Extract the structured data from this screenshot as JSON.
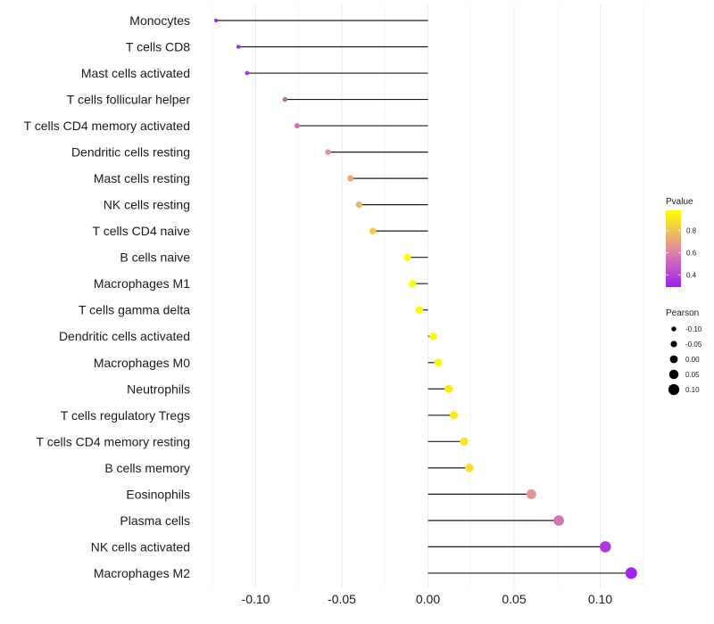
{
  "chart_data": {
    "type": "lollipop",
    "title": "",
    "xlabel": "",
    "ylabel": "",
    "xlim": [
      -0.128,
      0.122
    ],
    "x_ticks": [
      -0.1,
      -0.05,
      0.0,
      0.05,
      0.1
    ],
    "x_tick_labels": [
      "-0.10",
      "-0.05",
      "0.00",
      "0.05",
      "0.10"
    ],
    "grid": true,
    "categories": [
      "Monocytes",
      "T cells CD8",
      "Mast cells activated",
      "T cells follicular helper",
      "T cells CD4 memory activated",
      "Dendritic cells resting",
      "Mast cells resting",
      "NK cells resting",
      "T cells CD4 naive",
      "B cells naive",
      "Macrophages M1",
      "T cells gamma delta",
      "Dendritic cells activated",
      "Macrophages M0",
      "Neutrophils",
      "T cells regulatory  Tregs ",
      "T cells CD4 memory resting",
      "B cells memory",
      "Eosinophils",
      "Plasma cells",
      "NK cells activated",
      "Macrophages M2"
    ],
    "pearson": [
      -0.123,
      -0.11,
      -0.105,
      -0.083,
      -0.076,
      -0.058,
      -0.045,
      -0.04,
      -0.032,
      -0.012,
      -0.009,
      -0.005,
      0.003,
      0.006,
      0.012,
      0.015,
      0.021,
      0.024,
      0.06,
      0.076,
      0.103,
      0.118
    ],
    "pvalue": [
      0.29,
      0.33,
      0.35,
      0.5,
      0.52,
      0.65,
      0.72,
      0.75,
      0.83,
      0.97,
      0.97,
      0.96,
      0.97,
      0.95,
      0.93,
      0.92,
      0.9,
      0.88,
      0.66,
      0.55,
      0.37,
      0.3
    ],
    "legend": {
      "placement": "right",
      "color": {
        "title": "Pvalue",
        "range": [
          0.29,
          0.98
        ],
        "ticks": [
          0.4,
          0.6,
          0.8
        ],
        "tick_labels": [
          "0.4",
          "0.6",
          "0.8"
        ],
        "low_color": "#A020F0",
        "mid_color": "#E28DA0",
        "high_color": "#FFFF00"
      },
      "size": {
        "title": "Pearson",
        "values": [
          -0.1,
          -0.05,
          0.0,
          0.05,
          0.1
        ],
        "labels": [
          "-0.10",
          "-0.05",
          "0.00",
          "0.05",
          "0.10"
        ]
      }
    }
  }
}
